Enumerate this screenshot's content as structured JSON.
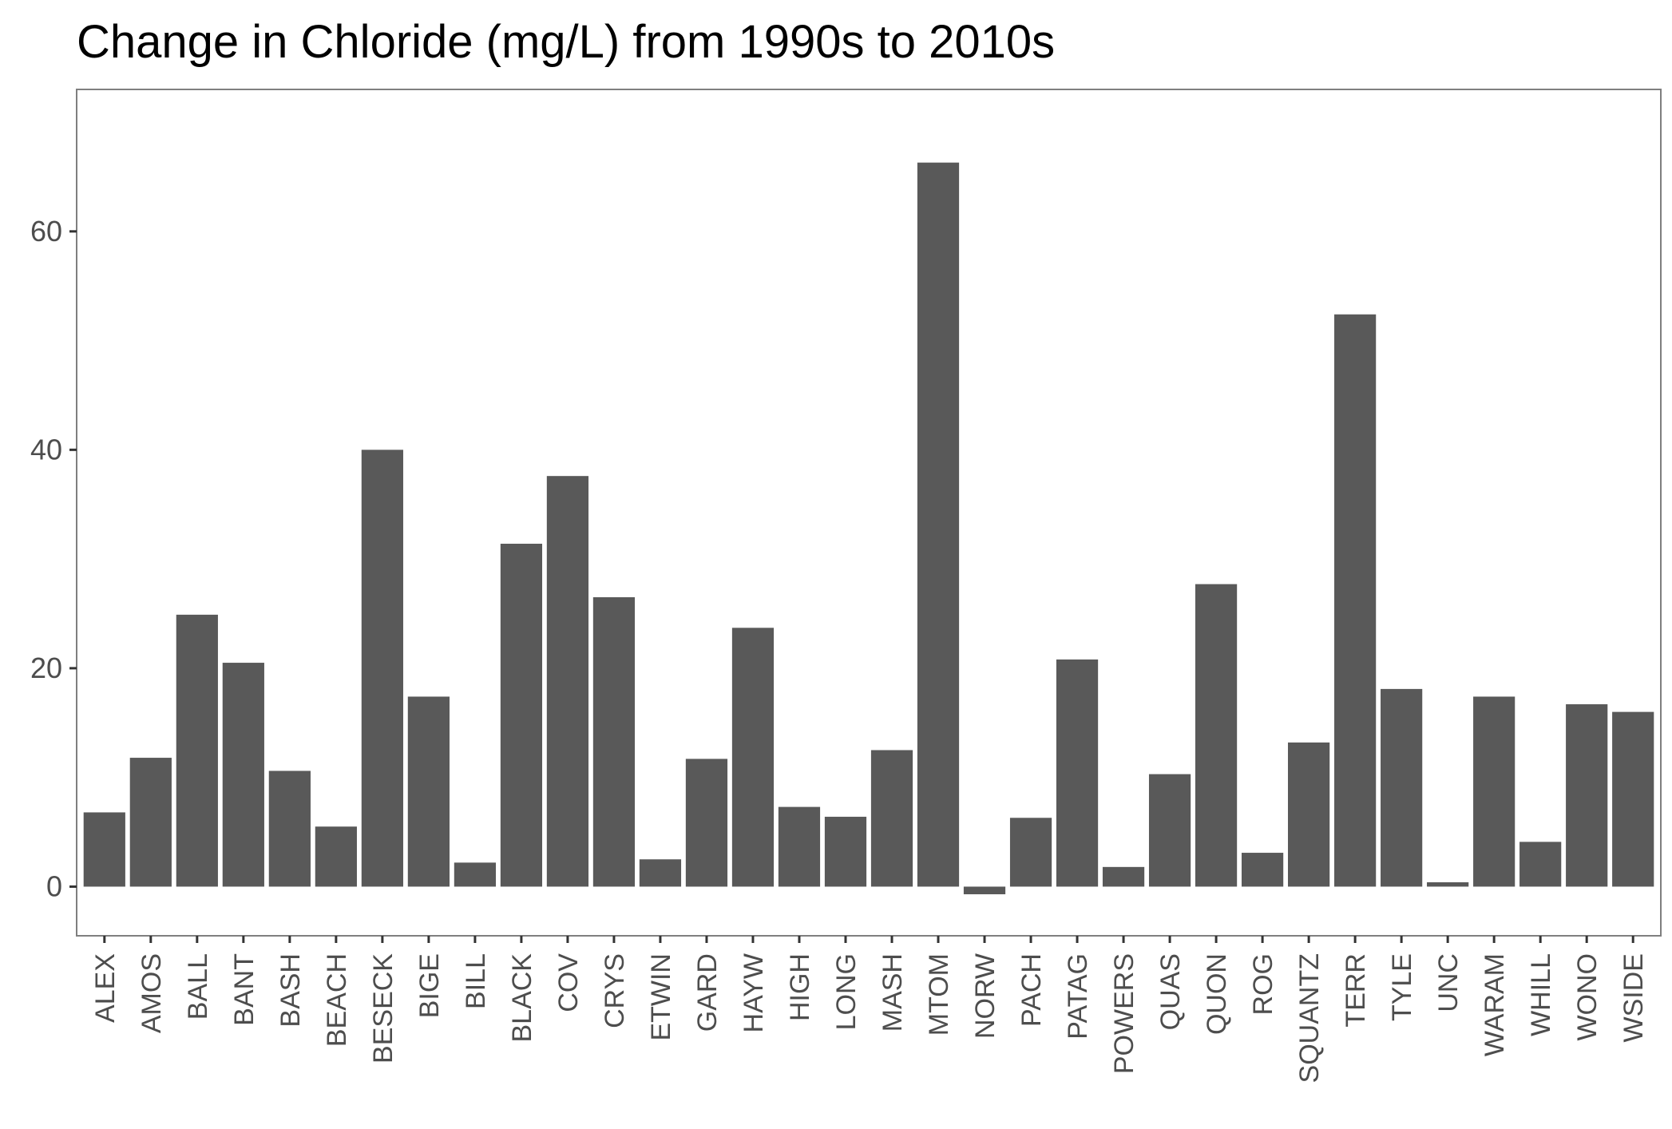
{
  "chart_data": {
    "type": "bar",
    "title": "Change in Chloride (mg/L) from 1990s to 2010s",
    "xlabel": "",
    "ylabel": "",
    "ylim": [
      -4.5,
      73
    ],
    "yticks": [
      0,
      20,
      40,
      60
    ],
    "grid": false,
    "legend": "none",
    "bar_color": "#595959",
    "categories": [
      "ALEX",
      "AMOS",
      "BALL",
      "BANT",
      "BASH",
      "BEACH",
      "BESECK",
      "BIGE",
      "BILL",
      "BLACK",
      "COV",
      "CRYS",
      "ETWIN",
      "GARD",
      "HAYW",
      "HIGH",
      "LONG",
      "MASH",
      "MTOM",
      "NORW",
      "PACH",
      "PATAG",
      "POWERS",
      "QUAS",
      "QUON",
      "ROG",
      "SQUANTZ",
      "TERR",
      "TYLE",
      "UNC",
      "WARAM",
      "WHILL",
      "WONO",
      "WSIDE"
    ],
    "values": [
      6.8,
      11.8,
      24.9,
      20.5,
      10.6,
      5.5,
      40.0,
      17.4,
      2.2,
      31.4,
      37.6,
      26.5,
      2.5,
      11.7,
      23.7,
      7.3,
      6.4,
      12.5,
      66.3,
      -0.7,
      6.3,
      20.8,
      1.8,
      10.3,
      27.7,
      3.1,
      13.2,
      52.4,
      18.1,
      0.4,
      17.4,
      4.1,
      16.7,
      16.0
    ]
  }
}
